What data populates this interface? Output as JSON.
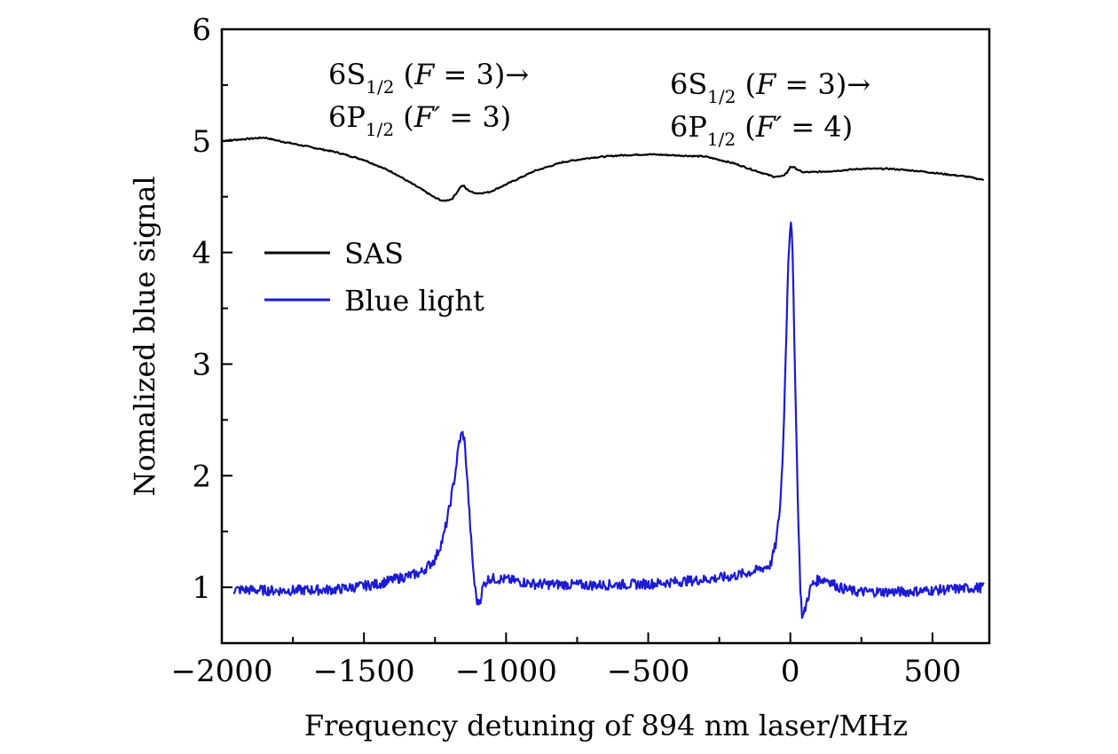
{
  "chart_data": {
    "type": "line",
    "xlabel": "Frequency detuning of  894 nm laser/MHz",
    "ylabel": "Nomalized blue signal",
    "xlim": [
      -2000,
      700
    ],
    "ylim": [
      0.5,
      6
    ],
    "xticks": [
      -2000,
      -1500,
      -1000,
      -500,
      0,
      500
    ],
    "xtick_labels": [
      "−2000",
      "−1500",
      "−1000",
      "−500",
      "0",
      "500"
    ],
    "yticks": [
      1,
      2,
      3,
      4,
      5,
      6
    ],
    "ytick_labels": [
      "1",
      "2",
      "3",
      "4",
      "5",
      "6"
    ],
    "grid": false,
    "legend_position": "middle-left",
    "series": [
      {
        "name": "SAS",
        "color": "#000000",
        "points": [
          [
            -2000,
            5.0
          ],
          [
            -1950,
            5.01
          ],
          [
            -1900,
            5.02
          ],
          [
            -1850,
            5.03
          ],
          [
            -1800,
            5.0
          ],
          [
            -1700,
            4.95
          ],
          [
            -1600,
            4.9
          ],
          [
            -1500,
            4.83
          ],
          [
            -1400,
            4.72
          ],
          [
            -1300,
            4.57
          ],
          [
            -1250,
            4.49
          ],
          [
            -1220,
            4.46
          ],
          [
            -1190,
            4.48
          ],
          [
            -1170,
            4.55
          ],
          [
            -1160,
            4.59
          ],
          [
            -1150,
            4.6
          ],
          [
            -1140,
            4.57
          ],
          [
            -1120,
            4.54
          ],
          [
            -1100,
            4.53
          ],
          [
            -1060,
            4.54
          ],
          [
            -1000,
            4.61
          ],
          [
            -900,
            4.73
          ],
          [
            -800,
            4.81
          ],
          [
            -700,
            4.85
          ],
          [
            -600,
            4.87
          ],
          [
            -500,
            4.88
          ],
          [
            -400,
            4.87
          ],
          [
            -300,
            4.86
          ],
          [
            -200,
            4.8
          ],
          [
            -120,
            4.73
          ],
          [
            -60,
            4.68
          ],
          [
            -30,
            4.68
          ],
          [
            -10,
            4.72
          ],
          [
            0,
            4.77
          ],
          [
            15,
            4.76
          ],
          [
            40,
            4.72
          ],
          [
            80,
            4.72
          ],
          [
            150,
            4.73
          ],
          [
            250,
            4.75
          ],
          [
            350,
            4.75
          ],
          [
            450,
            4.73
          ],
          [
            550,
            4.7
          ],
          [
            620,
            4.68
          ],
          [
            680,
            4.65
          ]
        ]
      },
      {
        "name": "Blue light",
        "color": "#1b1bd6",
        "points": [
          [
            -1960,
            0.98
          ],
          [
            -1800,
            0.97
          ],
          [
            -1600,
            0.98
          ],
          [
            -1450,
            1.03
          ],
          [
            -1380,
            1.08
          ],
          [
            -1300,
            1.13
          ],
          [
            -1250,
            1.25
          ],
          [
            -1220,
            1.45
          ],
          [
            -1200,
            1.7
          ],
          [
            -1180,
            2.0
          ],
          [
            -1165,
            2.3
          ],
          [
            -1155,
            2.38
          ],
          [
            -1148,
            2.35
          ],
          [
            -1140,
            2.1
          ],
          [
            -1130,
            1.7
          ],
          [
            -1120,
            1.3
          ],
          [
            -1110,
            1.0
          ],
          [
            -1100,
            0.85
          ],
          [
            -1090,
            0.9
          ],
          [
            -1080,
            1.02
          ],
          [
            -1060,
            1.08
          ],
          [
            -1000,
            1.07
          ],
          [
            -900,
            1.03
          ],
          [
            -700,
            1.02
          ],
          [
            -500,
            1.03
          ],
          [
            -300,
            1.07
          ],
          [
            -200,
            1.1
          ],
          [
            -120,
            1.15
          ],
          [
            -70,
            1.2
          ],
          [
            -50,
            1.4
          ],
          [
            -35,
            1.75
          ],
          [
            -25,
            2.3
          ],
          [
            -15,
            3.2
          ],
          [
            -8,
            3.9
          ],
          [
            0,
            4.27
          ],
          [
            6,
            4.15
          ],
          [
            12,
            3.5
          ],
          [
            20,
            2.5
          ],
          [
            28,
            1.6
          ],
          [
            35,
            1.0
          ],
          [
            42,
            0.72
          ],
          [
            50,
            0.78
          ],
          [
            60,
            0.9
          ],
          [
            75,
            1.02
          ],
          [
            100,
            1.07
          ],
          [
            130,
            1.07
          ],
          [
            170,
            1.0
          ],
          [
            230,
            0.96
          ],
          [
            400,
            0.96
          ],
          [
            550,
            0.98
          ],
          [
            680,
            1.0
          ]
        ]
      }
    ],
    "annotations": [
      {
        "line1": [
          "6S",
          "1/2",
          " (",
          "F",
          " = 3)→"
        ],
        "line2": [
          "6P",
          "1/2",
          " (",
          "F′",
          " = 3)"
        ]
      },
      {
        "line1": [
          "6S",
          "1/2",
          " (",
          "F",
          " = 3)→"
        ],
        "line2": [
          "6P",
          "1/2",
          " (",
          "F′",
          " = 4)"
        ]
      }
    ]
  }
}
